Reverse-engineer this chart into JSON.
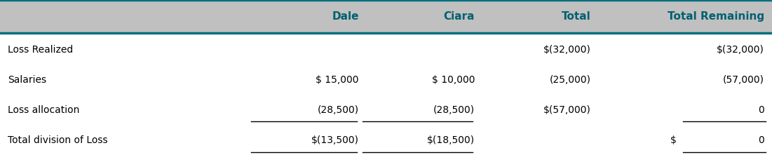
{
  "header_bg": "#c0c0c0",
  "header_text_color": "#006070",
  "border_color": "#007080",
  "body_bg": "#ffffff",
  "body_text_color": "#000000",
  "header_row": [
    "",
    "Dale",
    "Ciara",
    "Total",
    "Total Remaining"
  ],
  "rows": [
    [
      "Loss Realized",
      "",
      "",
      "$(32,000)",
      "$(32,000)"
    ],
    [
      "Salaries",
      "$ 15,000",
      "$ 10,000",
      "(25,000)",
      "(57,000)"
    ],
    [
      "Loss allocation",
      "(28,500)",
      "(28,500)",
      "$(57,000)",
      "0"
    ],
    [
      "Total division of Loss",
      "$(13,500)",
      "$(18,500)",
      "",
      "0"
    ]
  ],
  "figsize": [
    11.01,
    2.21
  ],
  "dpi": 100,
  "font_size": 10.0,
  "header_font_size": 11.0
}
